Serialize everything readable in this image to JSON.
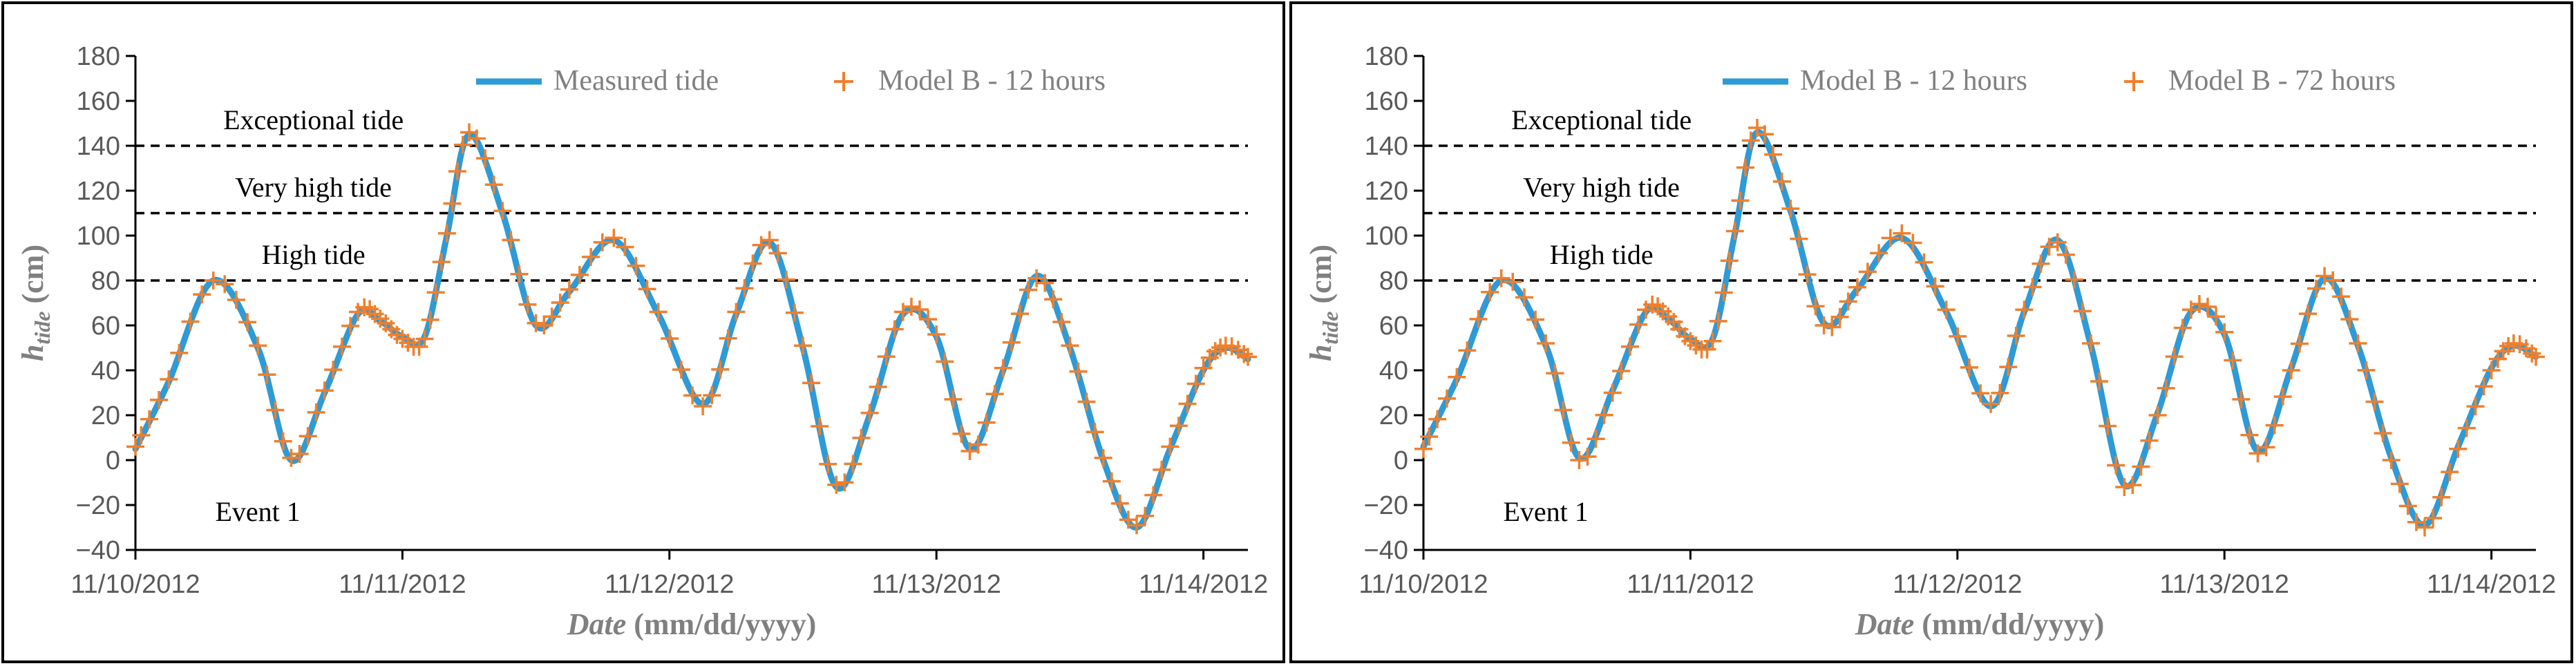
{
  "chart_data": [
    {
      "type": "line",
      "panel": "left",
      "xlabel_main": "Date",
      "xlabel_unit": " (mm/dd/yyyy)",
      "ylabel_main": "h",
      "ylabel_sub": "tide",
      "ylabel_unit": " (cm)",
      "ylim": [
        -40,
        180
      ],
      "yticks": [
        -40,
        -20,
        0,
        20,
        40,
        60,
        80,
        100,
        120,
        140,
        160,
        180
      ],
      "xlim": [
        0,
        100
      ],
      "x_tick_positions": [
        0,
        24,
        48,
        72,
        96
      ],
      "x_tick_labels": [
        "11/10/2012",
        "11/11/2012",
        "11/12/2012",
        "11/13/2012",
        "11/14/2012"
      ],
      "thresholds": [
        {
          "label": "Exceptional tide",
          "value": 140
        },
        {
          "label": "Very high tide",
          "value": 110
        },
        {
          "label": "High tide",
          "value": 80
        }
      ],
      "annotation": "Event 1",
      "legend": {
        "line_label": "Measured tide",
        "marker_label": "Model B - 12 hours",
        "placement": "top-right"
      },
      "colors": {
        "line": "#2e9ad6",
        "marker": "#f07f2c"
      },
      "x": [
        0,
        3,
        7,
        11,
        14,
        17,
        20,
        22,
        24,
        26,
        28,
        30,
        33,
        36,
        39,
        43,
        47,
        51,
        54,
        57,
        60,
        63,
        66,
        69,
        72,
        75,
        78,
        81,
        84,
        87,
        90,
        93,
        96,
        98,
        100
      ],
      "series": [
        {
          "name": "Measured tide",
          "values": [
            5,
            35,
            80,
            50,
            0,
            30,
            65,
            62,
            55,
            55,
            100,
            145,
            110,
            60,
            75,
            98,
            65,
            25,
            65,
            97,
            50,
            -12,
            20,
            65,
            55,
            5,
            40,
            82,
            50,
            0,
            -30,
            5,
            40,
            50,
            45
          ]
        },
        {
          "name": "Model B - 12 hours",
          "values": [
            6,
            36,
            80,
            51,
            1,
            31,
            66,
            63,
            54,
            54,
            101,
            146,
            111,
            61,
            76,
            99,
            66,
            24,
            66,
            98,
            51,
            -11,
            21,
            66,
            56,
            4,
            41,
            81,
            51,
            1,
            -29,
            6,
            41,
            51,
            46
          ]
        }
      ]
    },
    {
      "type": "line",
      "panel": "right",
      "xlabel_main": "Date",
      "xlabel_unit": " (mm/dd/yyyy)",
      "ylabel_main": "h",
      "ylabel_sub": "tide",
      "ylabel_unit": " (cm)",
      "ylim": [
        -40,
        180
      ],
      "yticks": [
        -40,
        -20,
        0,
        20,
        40,
        60,
        80,
        100,
        120,
        140,
        160,
        180
      ],
      "xlim": [
        0,
        100
      ],
      "x_tick_positions": [
        0,
        24,
        48,
        72,
        96
      ],
      "x_tick_labels": [
        "11/10/2012",
        "11/11/2012",
        "11/12/2012",
        "11/13/2012",
        "11/14/2012"
      ],
      "thresholds": [
        {
          "label": "Exceptional tide",
          "value": 140
        },
        {
          "label": "Very high tide",
          "value": 110
        },
        {
          "label": "High tide",
          "value": 80
        }
      ],
      "annotation": "Event 1",
      "legend": {
        "line_label": "Model B - 12 hours",
        "marker_label": "Model B - 72 hours",
        "placement": "top-right"
      },
      "colors": {
        "line": "#2e9ad6",
        "marker": "#f07f2c"
      },
      "x": [
        0,
        3,
        7,
        11,
        14,
        17,
        20,
        22,
        24,
        26,
        28,
        30,
        33,
        36,
        39,
        43,
        47,
        51,
        54,
        57,
        60,
        63,
        66,
        69,
        72,
        75,
        78,
        81,
        84,
        87,
        90,
        93,
        96,
        98,
        100
      ],
      "series": [
        {
          "name": "Model B - 12 hours",
          "values": [
            6,
            36,
            80,
            51,
            1,
            31,
            66,
            63,
            54,
            54,
            101,
            146,
            111,
            61,
            76,
            99,
            66,
            24,
            66,
            98,
            51,
            -11,
            21,
            66,
            56,
            4,
            41,
            81,
            51,
            1,
            -29,
            6,
            41,
            51,
            46
          ]
        },
        {
          "name": "Model B - 72 hours",
          "values": [
            5,
            37,
            81,
            52,
            0,
            30,
            67,
            64,
            53,
            53,
            102,
            148,
            112,
            60,
            77,
            101,
            67,
            25,
            67,
            97,
            52,
            -12,
            20,
            67,
            57,
            3,
            40,
            82,
            52,
            0,
            -30,
            5,
            40,
            52,
            46
          ]
        }
      ]
    }
  ]
}
